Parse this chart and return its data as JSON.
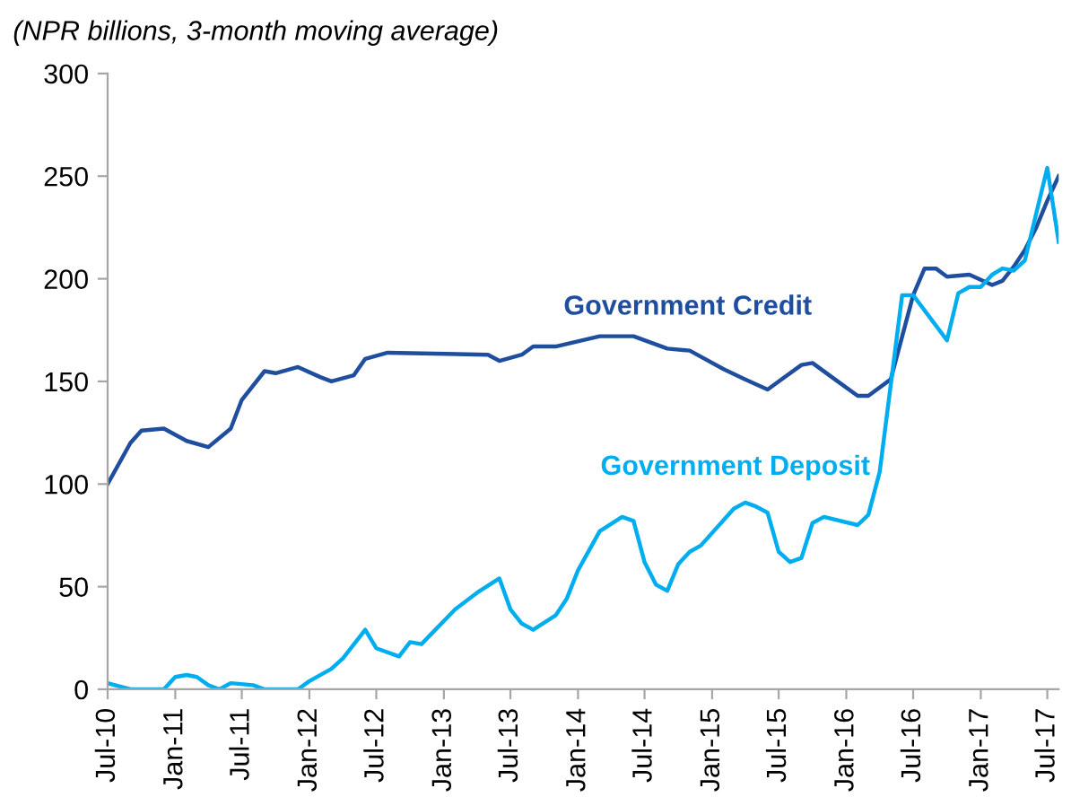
{
  "chart_data": {
    "type": "line",
    "title": "(NPR billions, 3-month moving average)",
    "ylim": [
      0,
      300
    ],
    "yticks": [
      0,
      50,
      100,
      150,
      200,
      250,
      300
    ],
    "xlim": [
      "2010-07",
      "2017-08"
    ],
    "xticks": [
      {
        "value": "2010-07",
        "label": "Jul-10"
      },
      {
        "value": "2011-01",
        "label": "Jan-11"
      },
      {
        "value": "2011-07",
        "label": "Jul-11"
      },
      {
        "value": "2012-01",
        "label": "Jan-12"
      },
      {
        "value": "2012-07",
        "label": "Jul-12"
      },
      {
        "value": "2013-01",
        "label": "Jan-13"
      },
      {
        "value": "2013-07",
        "label": "Jul-13"
      },
      {
        "value": "2014-01",
        "label": "Jan-14"
      },
      {
        "value": "2014-07",
        "label": "Jul-14"
      },
      {
        "value": "2015-01",
        "label": "Jan-15"
      },
      {
        "value": "2015-07",
        "label": "Jul-15"
      },
      {
        "value": "2016-01",
        "label": "Jan-16"
      },
      {
        "value": "2016-07",
        "label": "Jul-16"
      },
      {
        "value": "2017-01",
        "label": "Jan-17"
      },
      {
        "value": "2017-07",
        "label": "Jul-17"
      }
    ],
    "grid": false,
    "legend": false,
    "marker": "none",
    "line_style": "solid",
    "series": [
      {
        "name": "Government Credit",
        "color": "#1f4e9e",
        "x": [
          "2010-07",
          "2010-09",
          "2010-10",
          "2010-12",
          "2011-02",
          "2011-04",
          "2011-06",
          "2011-07",
          "2011-09",
          "2011-10",
          "2011-12",
          "2012-02",
          "2012-03",
          "2012-05",
          "2012-06",
          "2012-08",
          "2013-05",
          "2013-06",
          "2013-08",
          "2013-09",
          "2013-11",
          "2014-03",
          "2014-06",
          "2014-09",
          "2014-11",
          "2015-02",
          "2015-04",
          "2015-06",
          "2015-07",
          "2015-09",
          "2015-10",
          "2015-12",
          "2016-02",
          "2016-03",
          "2016-05",
          "2016-07",
          "2016-08",
          "2016-09",
          "2016-10",
          "2016-12",
          "2017-02",
          "2017-03",
          "2017-04",
          "2017-05",
          "2017-06",
          "2017-07",
          "2017-08"
        ],
        "values": [
          100,
          120,
          126,
          127,
          121,
          118,
          127,
          141,
          155,
          154,
          157,
          152,
          150,
          153,
          161,
          164,
          163,
          160,
          163,
          167,
          167,
          172,
          172,
          166,
          165,
          156,
          151,
          146,
          150,
          158,
          159,
          151,
          143,
          143,
          151,
          192,
          205,
          205,
          201,
          202,
          197,
          199,
          206,
          214,
          225,
          238,
          250
        ]
      },
      {
        "name": "Government Deposit",
        "color": "#00aeef",
        "x": [
          "2010-07",
          "2010-09",
          "2010-12",
          "2011-01",
          "2011-02",
          "2011-03",
          "2011-04",
          "2011-05",
          "2011-06",
          "2011-08",
          "2011-09",
          "2011-12",
          "2012-01",
          "2012-03",
          "2012-04",
          "2012-06",
          "2012-07",
          "2012-09",
          "2012-10",
          "2012-11",
          "2013-02",
          "2013-04",
          "2013-06",
          "2013-07",
          "2013-08",
          "2013-09",
          "2013-11",
          "2013-12",
          "2014-01",
          "2014-03",
          "2014-05",
          "2014-06",
          "2014-07",
          "2014-08",
          "2014-09",
          "2014-10",
          "2014-11",
          "2014-12",
          "2015-03",
          "2015-04",
          "2015-05",
          "2015-06",
          "2015-07",
          "2015-08",
          "2015-09",
          "2015-10",
          "2015-11",
          "2016-02",
          "2016-03",
          "2016-04",
          "2016-06",
          "2016-07",
          "2016-10",
          "2016-11",
          "2016-12",
          "2017-01",
          "2017-02",
          "2017-03",
          "2017-04",
          "2017-05",
          "2017-07",
          "2017-08"
        ],
        "values": [
          3,
          0,
          0,
          6,
          7,
          6,
          2,
          0,
          3,
          2,
          0,
          0,
          4,
          10,
          15,
          29,
          20,
          16,
          23,
          22,
          39,
          47,
          54,
          39,
          32,
          29,
          36,
          44,
          58,
          77,
          84,
          82,
          62,
          51,
          48,
          61,
          67,
          70,
          88,
          91,
          89,
          86,
          67,
          62,
          64,
          81,
          84,
          80,
          85,
          106,
          192,
          192,
          170,
          193,
          196,
          196,
          202,
          205,
          204,
          209,
          254,
          218
        ]
      }
    ]
  }
}
